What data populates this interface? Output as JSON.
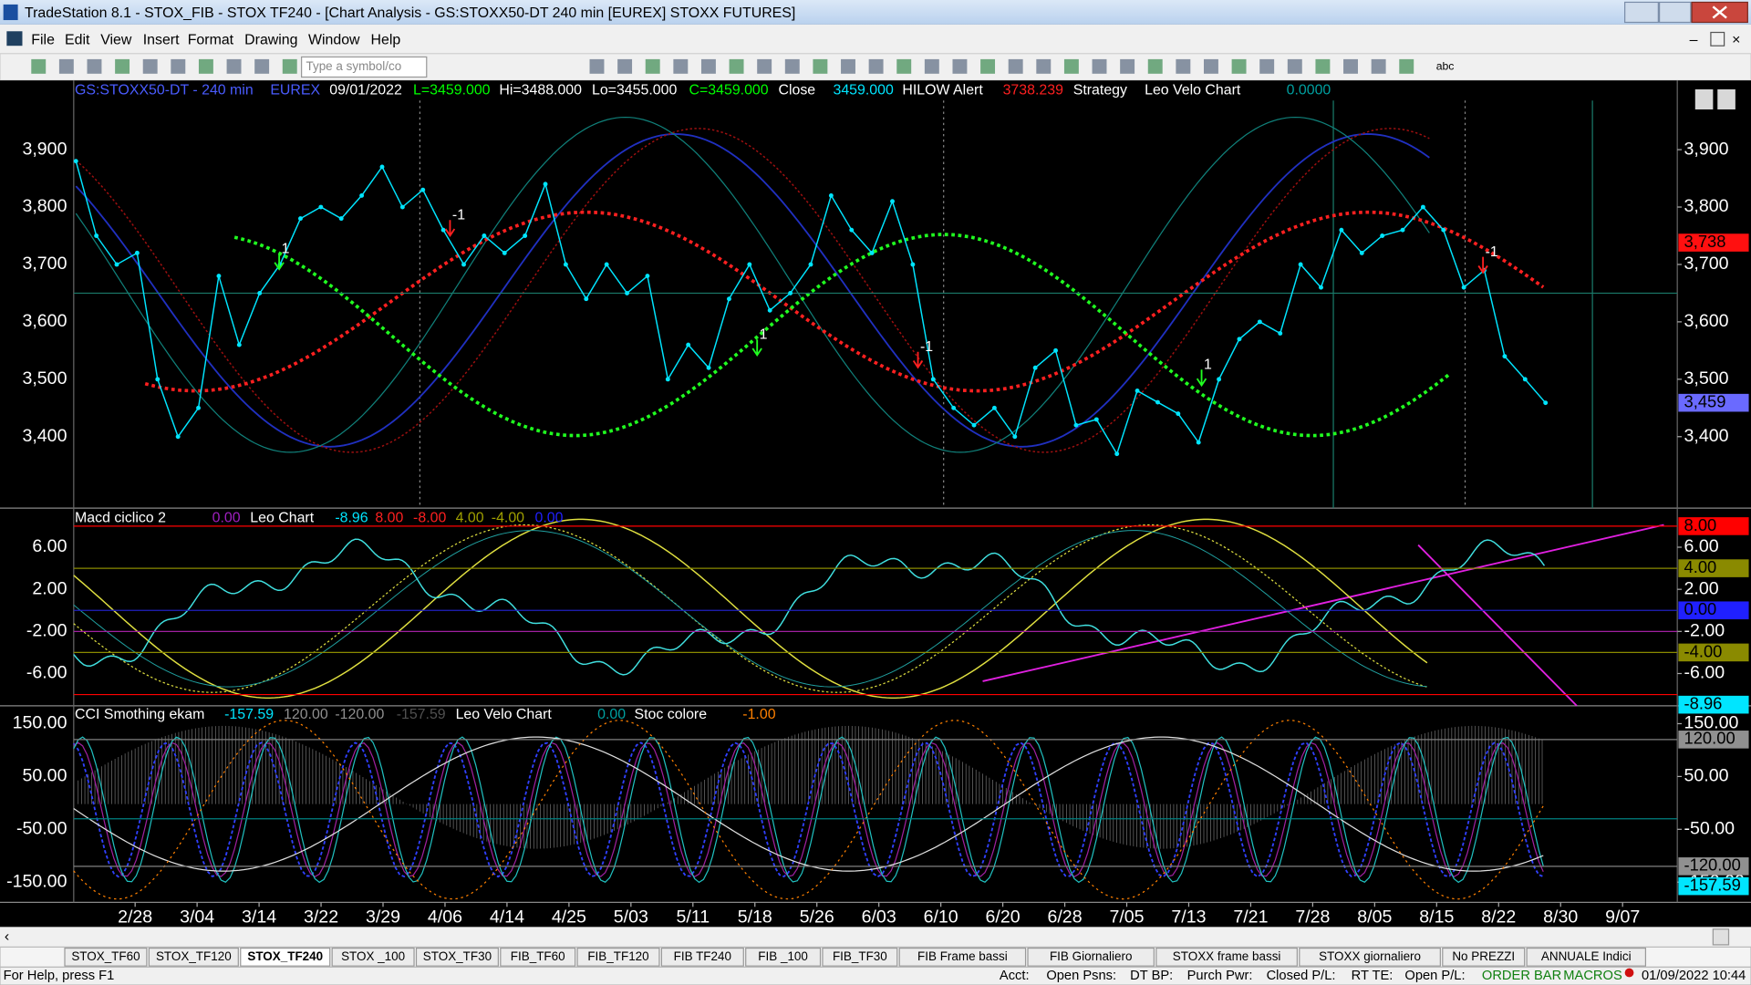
{
  "window": {
    "title": "TradeStation 8.1 - STOX_FIB - STOX TF240 - [Chart Analysis - GS:STOXX50-DT  240 min  [EUREX] STOXX FUTURES]"
  },
  "menu": [
    "File",
    "Edit",
    "View",
    "Insert",
    "Format",
    "Drawing",
    "Window",
    "Help"
  ],
  "toolbar": {
    "symbol_box": "Type a symbol/co",
    "abc": "abc"
  },
  "price_pane": {
    "header": [
      {
        "text": "GS:STOXX50-DT - 240 min",
        "color": "#4a5cff"
      },
      {
        "text": "EUREX",
        "color": "#4a5cff"
      },
      {
        "text": "09/01/2022",
        "color": "#ffffff"
      },
      {
        "text": "L=3459.000",
        "color": "#00ff00"
      },
      {
        "text": "Hi=3488.000",
        "color": "#ffffff"
      },
      {
        "text": "Lo=3455.000",
        "color": "#ffffff"
      },
      {
        "text": "C=3459.000",
        "color": "#00ff00"
      },
      {
        "text": "Close",
        "color": "#ffffff"
      },
      {
        "text": "3459.000",
        "color": "#00e5ff"
      },
      {
        "text": "HILOW Alert",
        "color": "#ffffff"
      },
      {
        "text": "3738.239",
        "color": "#ff2020"
      },
      {
        "text": "Strategy",
        "color": "#ffffff"
      },
      {
        "text": "Leo Velo Chart",
        "color": "#ffffff"
      },
      {
        "text": "0.0000",
        "color": "#00a0a0"
      }
    ],
    "yticks": [
      {
        "value": 3900,
        "label": "3,900"
      },
      {
        "value": 3800,
        "label": "3,800"
      },
      {
        "value": 3700,
        "label": "3,700"
      },
      {
        "value": 3600,
        "label": "3,600"
      },
      {
        "value": 3500,
        "label": "3,500"
      },
      {
        "value": 3400,
        "label": "3,400"
      }
    ],
    "tags": [
      {
        "value": 3738,
        "label": "3,738",
        "color": "#ff1010"
      },
      {
        "value": 3459,
        "label": "3,459",
        "color": "#6a6aff"
      }
    ],
    "level": 3650,
    "annotations": [
      "-1",
      "1",
      "1",
      "-1",
      "1",
      "-1"
    ],
    "close_color": "#00e5ff",
    "close": [
      3880,
      3750,
      3700,
      3720,
      3500,
      3400,
      3450,
      3680,
      3560,
      3650,
      3700,
      3780,
      3800,
      3780,
      3820,
      3870,
      3800,
      3830,
      3760,
      3700,
      3750,
      3720,
      3750,
      3840,
      3700,
      3640,
      3700,
      3650,
      3680,
      3500,
      3560,
      3520,
      3640,
      3700,
      3620,
      3650,
      3700,
      3820,
      3760,
      3720,
      3810,
      3700,
      3500,
      3450,
      3420,
      3450,
      3400,
      3520,
      3550,
      3420,
      3430,
      3370,
      3480,
      3460,
      3440,
      3390,
      3500,
      3570,
      3600,
      3580,
      3700,
      3660,
      3760,
      3720,
      3750,
      3760,
      3800,
      3760,
      3660,
      3690,
      3540,
      3500,
      3459
    ]
  },
  "macd_pane": {
    "header": [
      {
        "text": "Macd ciclico 2",
        "color": "#ffffff"
      },
      {
        "text": "0.00",
        "color": "#a020c0"
      },
      {
        "text": "Leo Chart",
        "color": "#ffffff"
      },
      {
        "text": "-8.96",
        "color": "#00e5ff"
      },
      {
        "text": "8.00",
        "color": "#ff2020"
      },
      {
        "text": "-8.00",
        "color": "#ff2020"
      },
      {
        "text": "4.00",
        "color": "#a0a000"
      },
      {
        "text": "-4.00",
        "color": "#a0a000"
      },
      {
        "text": "0.00",
        "color": "#2020ff"
      }
    ],
    "yticks": [
      {
        "value": 6,
        "label": "6.00"
      },
      {
        "value": 2,
        "label": "2.00"
      },
      {
        "value": -2,
        "label": "-2.00"
      },
      {
        "value": -6,
        "label": "-6.00"
      }
    ],
    "levels": [
      {
        "value": 8,
        "color": "#ff0000"
      },
      {
        "value": 4,
        "color": "#8a8a00"
      },
      {
        "value": 0,
        "color": "#2020c0"
      },
      {
        "value": -2,
        "color": "#a020a0"
      },
      {
        "value": -4,
        "color": "#8a8a00"
      },
      {
        "value": -8,
        "color": "#ff0000"
      }
    ],
    "tags": [
      {
        "value": 8,
        "label": "8.00",
        "color": "#ff0000"
      },
      {
        "value": 4,
        "label": "4.00",
        "color": "#8a8a00"
      },
      {
        "value": 0,
        "label": "0.00",
        "color": "#2020ff"
      },
      {
        "value": -4,
        "label": "-4.00",
        "color": "#8a8a00"
      },
      {
        "value": -8.96,
        "label": "-8.96",
        "color": "#00e5ff"
      }
    ]
  },
  "cci_pane": {
    "header": [
      {
        "text": "CCI Smothing ekam",
        "color": "#ffffff"
      },
      {
        "text": "-157.59",
        "color": "#00e5ff"
      },
      {
        "text": "120.00",
        "color": "#909090"
      },
      {
        "text": "-120.00",
        "color": "#909090"
      },
      {
        "text": "-157.59",
        "color": "#505050"
      },
      {
        "text": "Leo Velo Chart",
        "color": "#ffffff"
      },
      {
        "text": "0.00",
        "color": "#00a0a0"
      },
      {
        "text": "Stoc colore",
        "color": "#ffffff"
      },
      {
        "text": "-1.00",
        "color": "#ff8000"
      }
    ],
    "yticks": [
      {
        "value": 150,
        "label": "150.00"
      },
      {
        "value": 50,
        "label": "50.00"
      },
      {
        "value": -50,
        "label": "-50.00"
      },
      {
        "value": -150,
        "label": "-150.00"
      }
    ],
    "levels": [
      {
        "value": 120,
        "color": "#808080"
      },
      {
        "value": -30,
        "color": "#008080"
      },
      {
        "value": -120,
        "color": "#808080"
      }
    ],
    "tags": [
      {
        "value": 120,
        "label": "120.00",
        "color": "#909090"
      },
      {
        "value": -120,
        "label": "-120.00",
        "color": "#909090"
      },
      {
        "value": -157.59,
        "label": "-157.59",
        "color": "#00e5ff"
      }
    ]
  },
  "dates": [
    "2/28",
    "3/04",
    "3/14",
    "3/22",
    "3/29",
    "4/06",
    "4/14",
    "4/25",
    "5/03",
    "5/11",
    "5/18",
    "5/26",
    "6/03",
    "6/10",
    "6/20",
    "6/28",
    "7/05",
    "7/13",
    "7/21",
    "7/28",
    "8/05",
    "8/15",
    "8/22",
    "8/30",
    "9/07"
  ],
  "tabs": [
    "STOX_TF60",
    "STOX_TF120",
    "STOX_TF240",
    "STOX _100",
    "STOX_TF30",
    "FIB_TF60",
    "FIB_TF120",
    "FIB TF240",
    "FIB _100",
    "FIB_TF30",
    "FIB Frame bassi",
    "FIB Giornaliero",
    "STOXX frame bassi",
    "STOXX giornaliero",
    "No PREZZI",
    "ANNUALE Indici"
  ],
  "status": {
    "help": "For Help, press F1",
    "fields": [
      "Acct:",
      "Open Psns:",
      "DT BP:",
      "Purch Pwr:",
      "Closed P/L:",
      "RT TE:",
      "Open P/L:"
    ],
    "order_bar": "ORDER BAR",
    "macros": "MACROS",
    "clock": "01/09/2022 10:44"
  }
}
